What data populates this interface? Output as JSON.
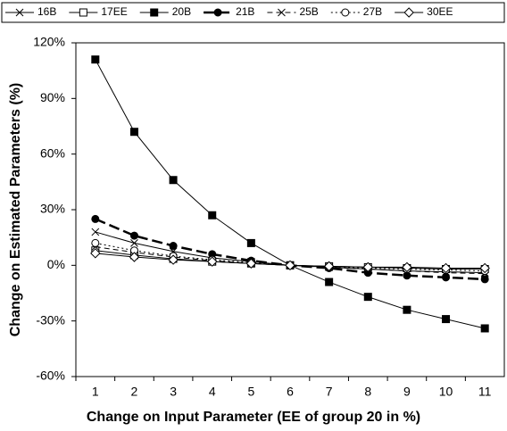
{
  "chart_data": {
    "type": "line",
    "x_label": "Change on Input Parameter (EE of group 20 in %)",
    "y_label": "Change on Estimated Parameters (%)",
    "categories": [
      "1",
      "2",
      "3",
      "4",
      "5",
      "6",
      "7",
      "8",
      "9",
      "10",
      "11"
    ],
    "ylim": [
      -60,
      120
    ],
    "yticks": [
      {
        "value": -60,
        "label": "-60%"
      },
      {
        "value": -30,
        "label": "-30%"
      },
      {
        "value": 0,
        "label": "0%"
      },
      {
        "value": 30,
        "label": "30%"
      },
      {
        "value": 60,
        "label": "60%"
      },
      {
        "value": 90,
        "label": "90%"
      },
      {
        "value": 120,
        "label": "120%"
      }
    ],
    "grid": false,
    "legend": "top",
    "series": [
      {
        "name": "16B",
        "color": "#000000",
        "line_style": "solid",
        "marker": "x",
        "values": [
          18,
          12,
          7.5,
          4,
          2,
          0,
          -1,
          -2,
          -3,
          -3.5,
          -4
        ]
      },
      {
        "name": "17EE",
        "color": "#000000",
        "line_style": "solid",
        "marker": "square-open",
        "values": [
          8,
          5.5,
          3.5,
          2,
          1,
          0,
          -0.5,
          -1,
          -1.5,
          -2,
          -2
        ]
      },
      {
        "name": "20B",
        "color": "#000000",
        "line_style": "solid",
        "marker": "square-filled",
        "values": [
          111,
          72,
          46,
          27,
          12,
          0,
          -9,
          -17,
          -24,
          -29,
          -34
        ]
      },
      {
        "name": "21B",
        "color": "#000000",
        "line_style": "long-dashed",
        "marker": "circle-filled",
        "values": [
          25,
          16,
          10.5,
          6,
          2.5,
          0,
          -1.5,
          -4,
          -5.5,
          -6.5,
          -7.5
        ]
      },
      {
        "name": "25B",
        "color": "#000000",
        "line_style": "dashed",
        "marker": "x",
        "values": [
          10,
          7,
          4.5,
          2.5,
          1,
          0,
          -1,
          -2,
          -3,
          -4,
          -4.5
        ]
      },
      {
        "name": "27B",
        "color": "#000000",
        "line_style": "dotted",
        "marker": "circle-open",
        "values": [
          12,
          8,
          5,
          3,
          1.5,
          0,
          -1,
          -1.5,
          -2,
          -2.5,
          -3
        ]
      },
      {
        "name": "30EE",
        "color": "#000000",
        "line_style": "solid",
        "marker": "diamond-open",
        "values": [
          6.5,
          4.5,
          3,
          2,
          1,
          0,
          -0.5,
          -1,
          -1,
          -1.5,
          -1.5
        ]
      }
    ]
  }
}
